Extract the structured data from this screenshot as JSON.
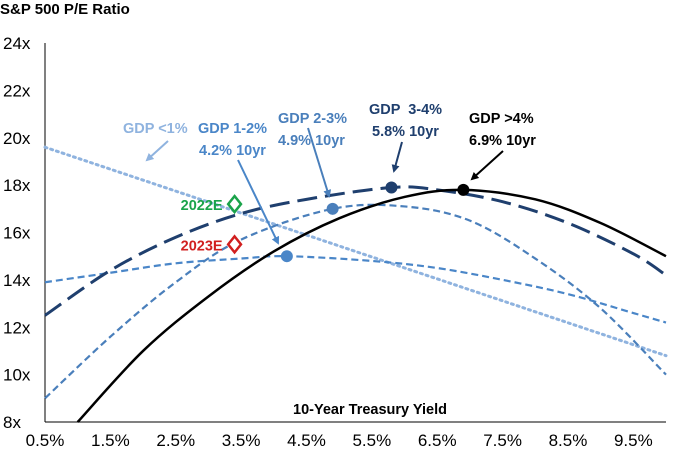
{
  "chart_data": {
    "type": "line",
    "title": "S&P 500 P/E Ratio",
    "xlabel": "10-Year Treasury Yield",
    "ylabel": "",
    "xlim": [
      0.5,
      10.0
    ],
    "ylim": [
      8,
      24
    ],
    "x_ticks": [
      "0.5%",
      "1.5%",
      "2.5%",
      "3.5%",
      "4.5%",
      "5.5%",
      "6.5%",
      "7.5%",
      "8.5%",
      "9.5%"
    ],
    "x_tick_values": [
      0.5,
      1.5,
      2.5,
      3.5,
      4.5,
      5.5,
      6.5,
      7.5,
      8.5,
      9.5
    ],
    "y_ticks": [
      "8x",
      "10x",
      "12x",
      "14x",
      "16x",
      "18x",
      "20x",
      "22x",
      "24x"
    ],
    "y_tick_values": [
      8,
      10,
      12,
      14,
      16,
      18,
      20,
      22,
      24
    ],
    "grid": false,
    "series": [
      {
        "name": "GDP <1%",
        "color": "#8fb3df",
        "style": "dotted",
        "x": [
          0.5,
          10.0
        ],
        "y": [
          19.6,
          10.8
        ]
      },
      {
        "name": "GDP 1-2%",
        "color": "#4a86c8",
        "style": "dashed",
        "x": [
          0.5,
          1.5,
          2.5,
          3.5,
          4.2,
          5.5,
          6.5,
          7.5,
          8.5,
          9.5,
          10.0
        ],
        "y": [
          13.9,
          14.3,
          14.7,
          14.9,
          15.0,
          14.8,
          14.5,
          14.0,
          13.4,
          12.6,
          12.2
        ],
        "point": {
          "x": 4.2,
          "y": 15.0,
          "label": "4.2% 10yr"
        }
      },
      {
        "name": "GDP 2-3%",
        "color": "#4a7fbb",
        "style": "dashed",
        "x": [
          0.5,
          1.5,
          2.5,
          3.5,
          4.9,
          6.0,
          7.0,
          8.0,
          9.0,
          10.0
        ],
        "y": [
          9.0,
          11.6,
          13.9,
          15.7,
          17.0,
          17.1,
          16.5,
          14.9,
          12.8,
          10.0
        ],
        "point": {
          "x": 4.9,
          "y": 17.0,
          "label": "4.9% 10yr"
        }
      },
      {
        "name": "GDP  3-4%",
        "color": "#1f3f6e",
        "style": "longdash",
        "x": [
          0.5,
          1.5,
          2.5,
          3.5,
          4.5,
          5.8,
          6.5,
          7.5,
          8.5,
          9.5,
          10.0
        ],
        "y": [
          12.5,
          14.4,
          15.8,
          16.8,
          17.4,
          17.9,
          17.8,
          17.3,
          16.4,
          15.1,
          14.2
        ],
        "point": {
          "x": 5.8,
          "y": 17.9,
          "label": "5.8% 10yr"
        }
      },
      {
        "name": "GDP >4%",
        "color": "#000000",
        "style": "solid",
        "x": [
          1.0,
          2.0,
          3.0,
          4.0,
          5.0,
          6.0,
          6.9,
          8.0,
          9.0,
          10.0
        ],
        "y": [
          8.0,
          11.0,
          13.3,
          15.2,
          16.6,
          17.5,
          17.8,
          17.4,
          16.4,
          15.0
        ],
        "point": {
          "x": 6.9,
          "y": 17.8,
          "label": "6.9% 10yr"
        }
      }
    ],
    "markers": [
      {
        "label": "2022E",
        "x": 3.4,
        "y": 17.2,
        "color": "#1aa34a"
      },
      {
        "label": "2023E",
        "x": 3.4,
        "y": 15.5,
        "color": "#d11f1f"
      }
    ]
  }
}
